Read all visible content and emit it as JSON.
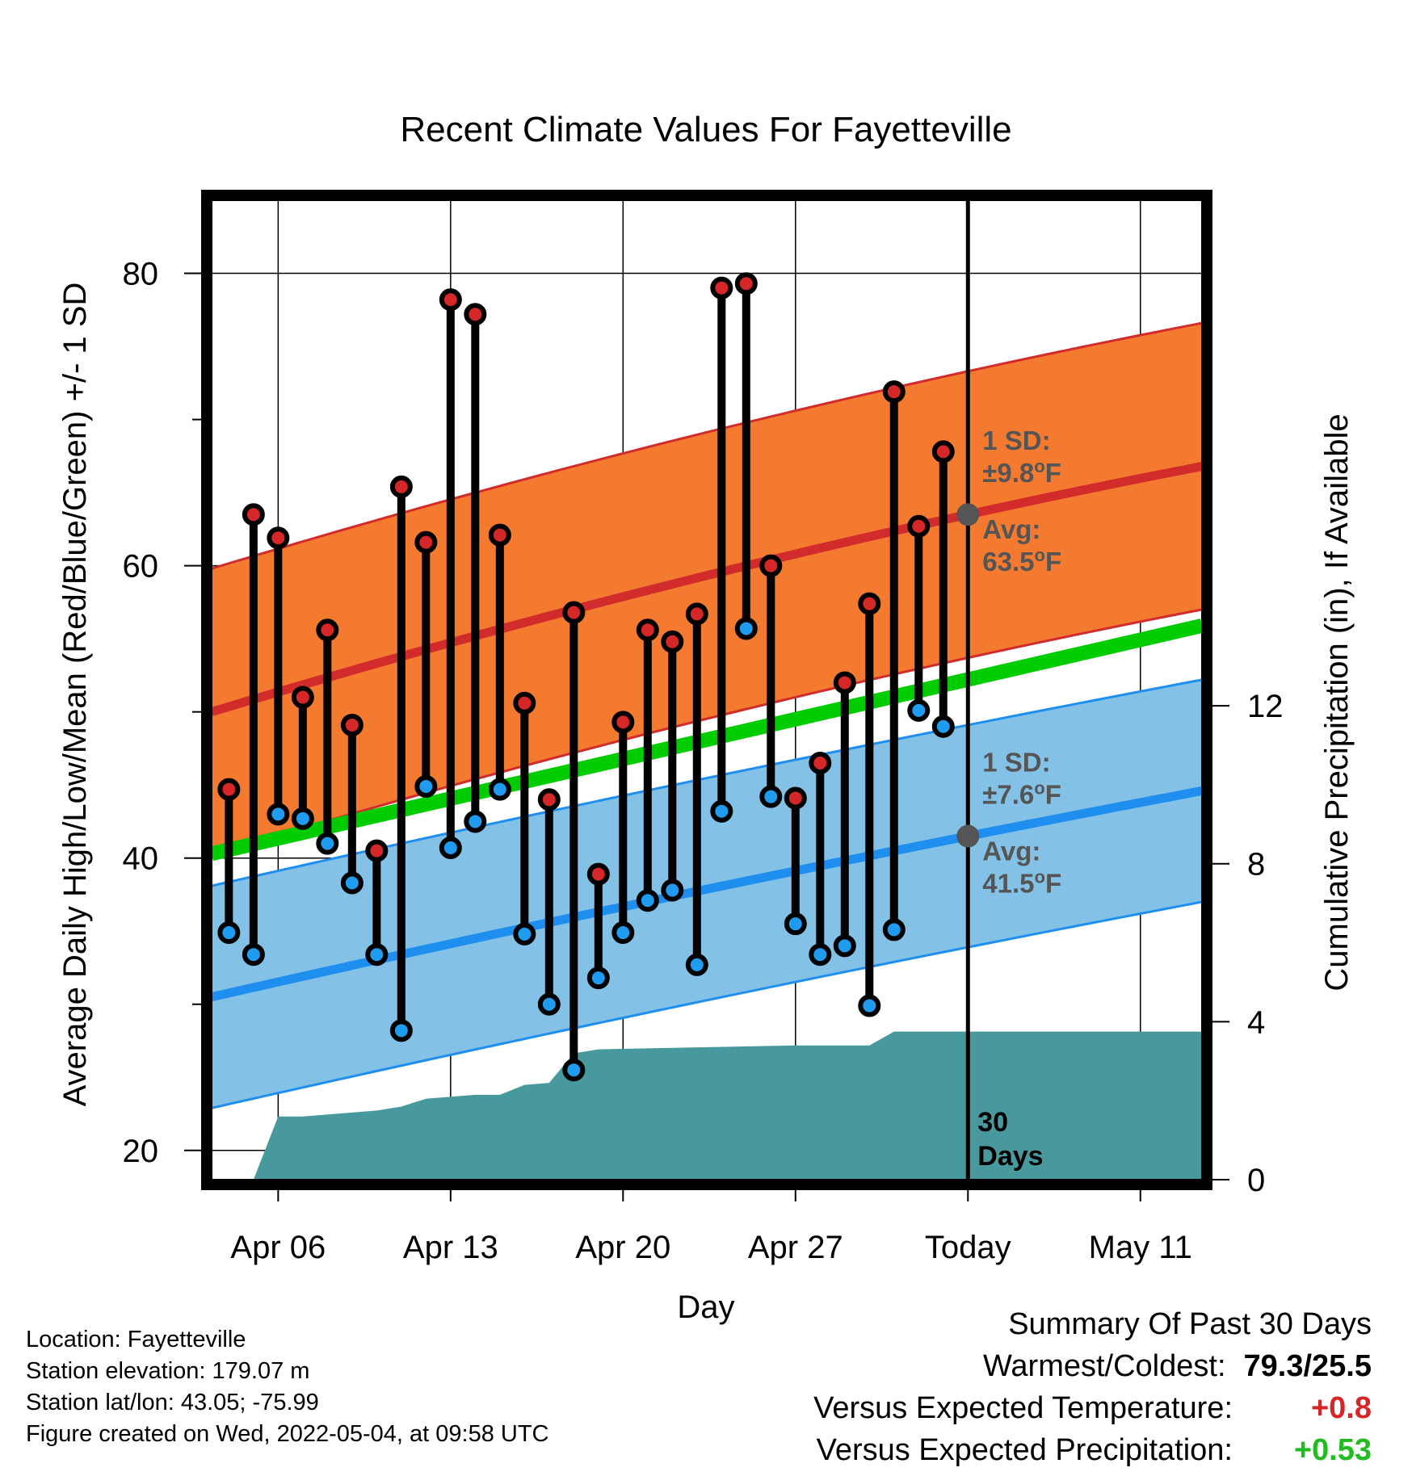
{
  "chart_data": {
    "type": "line",
    "title": "Recent Climate Values For Fayetteville",
    "xlabel": "Day",
    "ylabel": "Average Daily High/Low/Mean (Red/Blue/Green) +/- 1 SD",
    "y2label": "Cumulative Precipitation (in), If Available",
    "ylim": [
      18,
      85
    ],
    "y2lim": [
      0,
      24.8
    ],
    "x_ticks": [
      {
        "day": 6,
        "label": "Apr 06"
      },
      {
        "day": 13,
        "label": "Apr 13"
      },
      {
        "day": 20,
        "label": "Apr 20"
      },
      {
        "day": 27,
        "label": "Apr 27"
      },
      {
        "day": 34,
        "label": "Today"
      },
      {
        "day": 41,
        "label": "May 11"
      }
    ],
    "xlim": [
      3.3,
      43.5
    ],
    "y_ticks": [
      20,
      40,
      60,
      80
    ],
    "y_minor_ticks": [
      30,
      50,
      70
    ],
    "y2_ticks": [
      0,
      4,
      8,
      12
    ],
    "today_day": 34,
    "today_label": "30\nDays",
    "grid": true,
    "daily_high": {
      "days": [
        4,
        5,
        6,
        7,
        8,
        9,
        10,
        11,
        12,
        13,
        14,
        15,
        16,
        17,
        18,
        19,
        20,
        21,
        22,
        23,
        24,
        25,
        26,
        27,
        28,
        29,
        30,
        31,
        32,
        33
      ],
      "values": [
        44.7,
        63.5,
        61.9,
        51.0,
        55.6,
        49.1,
        40.5,
        65.4,
        61.6,
        78.2,
        77.2,
        62.1,
        50.6,
        44.0,
        56.8,
        38.9,
        49.3,
        55.6,
        54.8,
        56.7,
        79.0,
        79.3,
        60.0,
        44.1,
        46.5,
        52.0,
        57.4,
        71.9,
        62.7,
        67.8
      ]
    },
    "daily_low": {
      "days": [
        4,
        5,
        6,
        7,
        8,
        9,
        10,
        11,
        12,
        13,
        14,
        15,
        16,
        17,
        18,
        19,
        20,
        21,
        22,
        23,
        24,
        25,
        26,
        27,
        28,
        29,
        30,
        31,
        32,
        33
      ],
      "values": [
        34.9,
        33.4,
        43.0,
        42.7,
        41.0,
        38.3,
        33.4,
        28.2,
        44.9,
        40.7,
        42.5,
        44.7,
        34.8,
        30.0,
        25.5,
        31.8,
        34.9,
        37.1,
        37.8,
        32.7,
        43.2,
        55.7,
        44.2,
        35.5,
        33.4,
        34.0,
        29.9,
        35.1,
        50.1,
        49.0
      ]
    },
    "normal_high": {
      "start": [
        3.3,
        50.0
      ],
      "today": [
        34,
        63.5
      ],
      "end": [
        43.5,
        66.8
      ],
      "sd": 9.8
    },
    "normal_low": {
      "start": [
        3.3,
        30.5
      ],
      "today": [
        34,
        41.5
      ],
      "end": [
        43.5,
        44.6
      ],
      "sd": 7.6
    },
    "normal_mean": {
      "start": [
        3.3,
        40.3
      ],
      "end": [
        43.5,
        55.9
      ]
    },
    "precip_cumulative": {
      "days": [
        5.0,
        6.0,
        7.0,
        8.0,
        9.0,
        10.0,
        11.0,
        12.0,
        14.0,
        15.0,
        16.0,
        17.0,
        18.0,
        19.0,
        23.0,
        27.0,
        30.0,
        31.0,
        43.5
      ],
      "values": [
        0.0,
        1.6,
        1.6,
        1.65,
        1.7,
        1.75,
        1.85,
        2.05,
        2.15,
        2.15,
        2.4,
        2.45,
        3.2,
        3.3,
        3.35,
        3.4,
        3.4,
        3.75,
        3.75
      ]
    },
    "annotations": {
      "high_sd": "1 SD:",
      "high_sd_val": "±9.8",
      "high_avg": "Avg:",
      "high_avg_val": "63.5",
      "low_sd": "1 SD:",
      "low_sd_val": "±7.6",
      "low_avg": "Avg:",
      "low_avg_val": "41.5",
      "degree": "o",
      "unit": "F"
    },
    "colors": {
      "high_band": "#f47a30",
      "high_line": "#d12b2b",
      "low_band": "#84c1e6",
      "low_line": "#1f8fef",
      "mean_line": "#00cc00",
      "precip": "#48999e",
      "high_dot": "#d62728",
      "low_dot": "#1f9bef"
    }
  },
  "footer": {
    "location": "Location: Fayetteville",
    "elevation": "Station elevation: 179.07 m",
    "latlon": "Station lat/lon: 43.05; -75.99",
    "created": "Figure created on Wed, 2022-05-04, at 09:58 UTC"
  },
  "summary": {
    "heading": "Summary Of Past 30 Days",
    "warmest_label": "Warmest/Coldest:",
    "warmest_value": "79.3/25.5",
    "temp_label": "Versus Expected Temperature:",
    "temp_value": "+0.8",
    "precip_label": "Versus Expected Precipitation:",
    "precip_value": "+0.53"
  }
}
